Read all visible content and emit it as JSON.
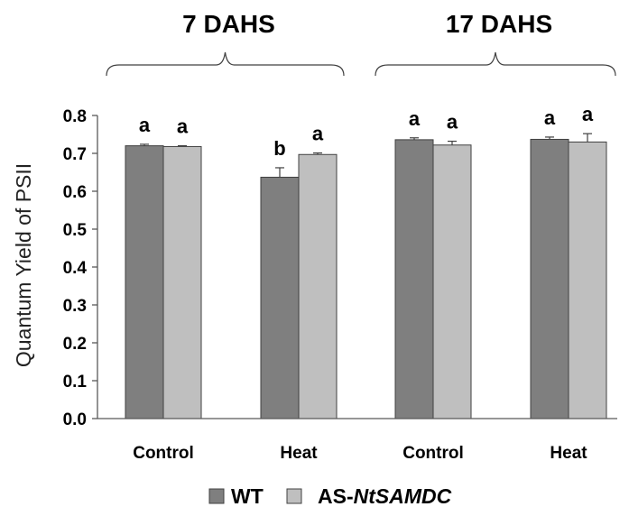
{
  "chart_data": {
    "type": "bar",
    "title": "",
    "xlabel": "",
    "ylabel": "Quantum Yield of PSII",
    "ylim": [
      0,
      0.8
    ],
    "yticks": [
      "0.0",
      "0.1",
      "0.2",
      "0.3",
      "0.4",
      "0.5",
      "0.6",
      "0.7",
      "0.8"
    ],
    "grid": false,
    "legend_position": "bottom",
    "groups": [
      {
        "label": "7 DAHS",
        "categories": [
          0,
          1
        ]
      },
      {
        "label": "17 DAHS",
        "categories": [
          2,
          3
        ]
      }
    ],
    "categories": [
      "Control",
      "Heat",
      "Control",
      "Heat"
    ],
    "series": [
      {
        "name": "WT",
        "color": "#7f7f7f",
        "values": [
          0.72,
          0.637,
          0.736,
          0.737
        ],
        "errors": [
          0.004,
          0.025,
          0.005,
          0.006
        ],
        "letters": [
          "a",
          "b",
          "a",
          "a"
        ]
      },
      {
        "name": "AS-NtSAMDC",
        "name_prefix": "AS-",
        "name_italic": "NtSAMDC",
        "color": "#bfbfbf",
        "values": [
          0.718,
          0.697,
          0.722,
          0.73
        ],
        "errors": [
          0.002,
          0.004,
          0.01,
          0.022
        ],
        "letters": [
          "a",
          "a",
          "a",
          "a"
        ]
      }
    ]
  }
}
